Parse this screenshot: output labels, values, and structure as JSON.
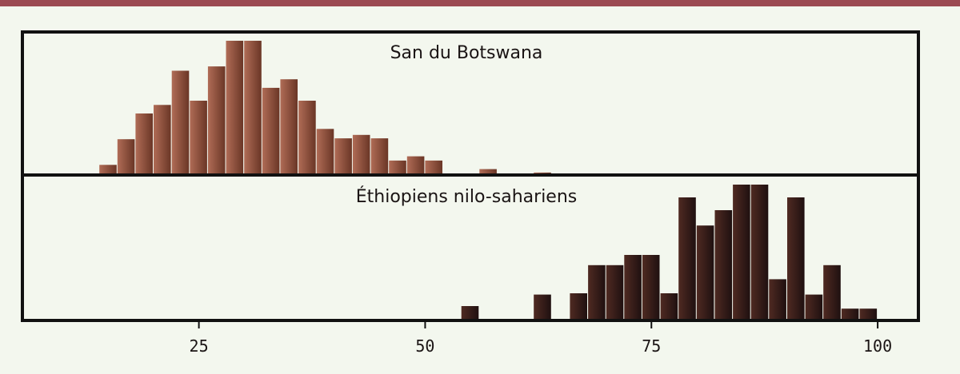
{
  "colors": {
    "stripe": "#9b4a52",
    "background": "#f3f7ee",
    "frame": "#111111",
    "san_light": "#b06c56",
    "san_dark": "#6a3626",
    "ethiopian_light": "#4f2a22",
    "ethiopian_dark": "#1f1010"
  },
  "chart_data": {
    "type": "bar",
    "title": "",
    "xlabel": "",
    "ylabel": "",
    "x_ticks": [
      25,
      50,
      75,
      100
    ],
    "xlim": [
      5.5,
      104.5
    ],
    "bin_width": 2,
    "grid": false,
    "series": [
      {
        "name": "San du Botswana",
        "bins": [
          {
            "x0": 14.0,
            "value": 1
          },
          {
            "x0": 16.0,
            "value": 4
          },
          {
            "x0": 18.0,
            "value": 7
          },
          {
            "x0": 20.0,
            "value": 8
          },
          {
            "x0": 22.0,
            "value": 12
          },
          {
            "x0": 24.0,
            "value": 8.5
          },
          {
            "x0": 26.0,
            "value": 12.5
          },
          {
            "x0": 28.0,
            "value": 15.5
          },
          {
            "x0": 30.0,
            "value": 15.5
          },
          {
            "x0": 32.0,
            "value": 10
          },
          {
            "x0": 34.0,
            "value": 11
          },
          {
            "x0": 36.0,
            "value": 8.5
          },
          {
            "x0": 38.0,
            "value": 5.2
          },
          {
            "x0": 40.0,
            "value": 4.1
          },
          {
            "x0": 42.0,
            "value": 4.5
          },
          {
            "x0": 44.0,
            "value": 4.1
          },
          {
            "x0": 46.0,
            "value": 1.5
          },
          {
            "x0": 48.0,
            "value": 2
          },
          {
            "x0": 50.0,
            "value": 1.5
          },
          {
            "x0": 56.0,
            "value": 0.5
          },
          {
            "x0": 62.0,
            "value": 0.1
          }
        ]
      },
      {
        "name": "Éthiopiens nilo-sahariens",
        "bins": [
          {
            "x0": 54.0,
            "value": 1
          },
          {
            "x0": 62.0,
            "value": 1.9
          },
          {
            "x0": 66.0,
            "value": 2
          },
          {
            "x0": 68.0,
            "value": 4.2
          },
          {
            "x0": 70.0,
            "value": 4.2
          },
          {
            "x0": 72.0,
            "value": 5
          },
          {
            "x0": 74.0,
            "value": 5
          },
          {
            "x0": 76.0,
            "value": 2
          },
          {
            "x0": 78.0,
            "value": 9.5
          },
          {
            "x0": 80.0,
            "value": 7.3
          },
          {
            "x0": 82.0,
            "value": 8.5
          },
          {
            "x0": 84.0,
            "value": 10.5
          },
          {
            "x0": 86.0,
            "value": 10.5
          },
          {
            "x0": 88.0,
            "value": 3.1
          },
          {
            "x0": 90.0,
            "value": 9.5
          },
          {
            "x0": 92.0,
            "value": 1.9
          },
          {
            "x0": 94.0,
            "value": 4.2
          },
          {
            "x0": 96.0,
            "value": 0.8
          },
          {
            "x0": 98.0,
            "value": 0.8
          }
        ]
      }
    ]
  }
}
